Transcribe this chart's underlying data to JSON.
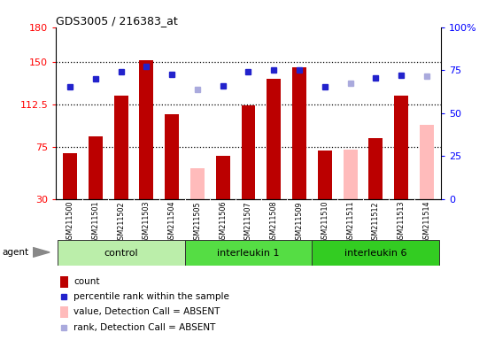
{
  "title": "GDS3005 / 216383_at",
  "samples": [
    "GSM211500",
    "GSM211501",
    "GSM211502",
    "GSM211503",
    "GSM211504",
    "GSM211505",
    "GSM211506",
    "GSM211507",
    "GSM211508",
    "GSM211509",
    "GSM211510",
    "GSM211511",
    "GSM211512",
    "GSM211513",
    "GSM211514"
  ],
  "groups": [
    {
      "label": "control",
      "start": 0,
      "end": 4
    },
    {
      "label": "interleukin 1",
      "start": 5,
      "end": 9
    },
    {
      "label": "interleukin 6",
      "start": 10,
      "end": 14
    }
  ],
  "bar_values": [
    70,
    85,
    120,
    151,
    104,
    57,
    68,
    112,
    135,
    145,
    72,
    73,
    83,
    120,
    95
  ],
  "bar_absent": [
    false,
    false,
    false,
    false,
    false,
    true,
    false,
    false,
    false,
    false,
    false,
    true,
    false,
    false,
    true
  ],
  "rank_values_left": [
    128,
    135,
    141,
    146,
    139,
    126,
    129,
    141,
    143,
    143,
    128,
    131,
    136,
    138,
    137
  ],
  "rank_absent": [
    false,
    false,
    false,
    false,
    false,
    true,
    false,
    false,
    false,
    false,
    false,
    true,
    false,
    false,
    true
  ],
  "ylim_left": [
    30,
    180
  ],
  "ylim_right": [
    0,
    100
  ],
  "yticks_left": [
    30,
    75,
    112.5,
    150,
    180
  ],
  "ytick_labels_left": [
    "30",
    "75",
    "112.5",
    "150",
    "180"
  ],
  "yticks_right": [
    0,
    25,
    50,
    75,
    100
  ],
  "ytick_labels_right": [
    "0",
    "25",
    "50",
    "75",
    "100%"
  ],
  "hlines": [
    75,
    112.5,
    150
  ],
  "bar_color_present": "#bb0000",
  "bar_color_absent": "#ffbbbb",
  "rank_color_present": "#2222cc",
  "rank_color_absent": "#aaaadd",
  "group_colors": [
    "#bbeeaa",
    "#55dd44",
    "#33cc22"
  ],
  "figsize": [
    5.5,
    3.84
  ],
  "dpi": 100
}
